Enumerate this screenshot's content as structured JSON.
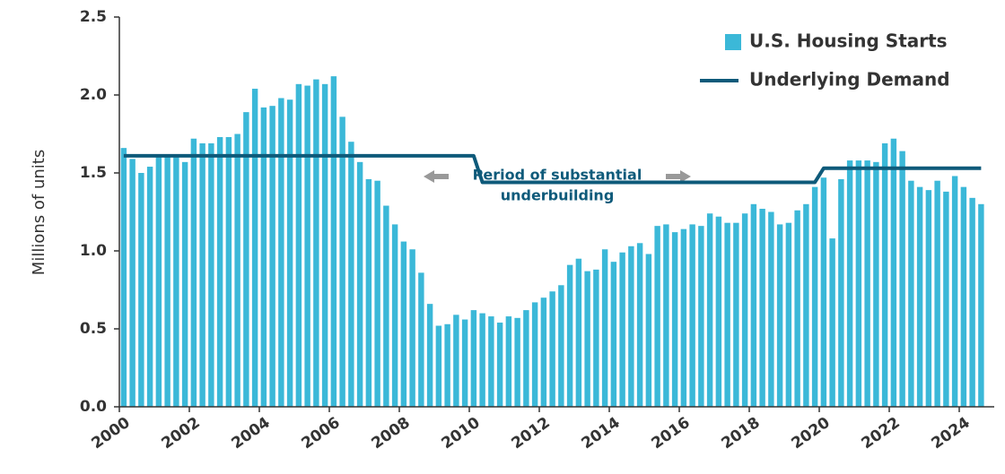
{
  "chart_data": {
    "type": "bar-line",
    "y_label": "Millions of units",
    "annotation": [
      "Period of substantial",
      "underbuilding"
    ],
    "categories": [
      "2000",
      null,
      null,
      null,
      null,
      null,
      null,
      null,
      "2002",
      null,
      null,
      null,
      null,
      null,
      null,
      null,
      "2004",
      null,
      null,
      null,
      null,
      null,
      null,
      null,
      "2006",
      null,
      null,
      null,
      null,
      null,
      null,
      null,
      "2008",
      null,
      null,
      null,
      null,
      null,
      null,
      null,
      "2010",
      null,
      null,
      null,
      null,
      null,
      null,
      null,
      "2012",
      null,
      null,
      null,
      null,
      null,
      null,
      null,
      "2014",
      null,
      null,
      null,
      null,
      null,
      null,
      null,
      "2016",
      null,
      null,
      null,
      null,
      null,
      null,
      null,
      "2018",
      null,
      null,
      null,
      null,
      null,
      null,
      null,
      "2020",
      null,
      null,
      null,
      null,
      null,
      null,
      null,
      "2022",
      null,
      null,
      null,
      null,
      null,
      null,
      null,
      "2024",
      null,
      null
    ],
    "series": [
      {
        "name": "U.S. Housing Starts",
        "type": "bar",
        "color": "#3bb8d8",
        "values": [
          1.66,
          1.59,
          1.5,
          1.54,
          1.6,
          1.61,
          1.6,
          1.57,
          1.72,
          1.69,
          1.69,
          1.73,
          1.73,
          1.75,
          1.89,
          2.04,
          1.92,
          1.93,
          1.98,
          1.97,
          2.07,
          2.06,
          2.1,
          2.07,
          2.12,
          1.86,
          1.7,
          1.57,
          1.46,
          1.45,
          1.29,
          1.17,
          1.06,
          1.01,
          0.86,
          0.66,
          0.52,
          0.53,
          0.59,
          0.56,
          0.62,
          0.6,
          0.58,
          0.54,
          0.58,
          0.57,
          0.62,
          0.67,
          0.7,
          0.74,
          0.78,
          0.91,
          0.95,
          0.87,
          0.88,
          1.01,
          0.93,
          0.99,
          1.03,
          1.05,
          0.98,
          1.16,
          1.17,
          1.12,
          1.14,
          1.17,
          1.16,
          1.24,
          1.22,
          1.18,
          1.18,
          1.24,
          1.3,
          1.27,
          1.25,
          1.17,
          1.18,
          1.26,
          1.3,
          1.41,
          1.47,
          1.08,
          1.46,
          1.58,
          1.58,
          1.58,
          1.57,
          1.69,
          1.72,
          1.64,
          1.45,
          1.41,
          1.39,
          1.45,
          1.38,
          1.48,
          1.41,
          1.34,
          1.3
        ]
      },
      {
        "name": "Underlying Demand",
        "type": "line",
        "color": "#0e5a7a",
        "values": [
          1.61,
          1.61,
          1.61,
          1.61,
          1.61,
          1.61,
          1.61,
          1.61,
          1.61,
          1.61,
          1.61,
          1.61,
          1.61,
          1.61,
          1.61,
          1.61,
          1.61,
          1.61,
          1.61,
          1.61,
          1.61,
          1.61,
          1.61,
          1.61,
          1.61,
          1.61,
          1.61,
          1.61,
          1.61,
          1.61,
          1.61,
          1.61,
          1.61,
          1.61,
          1.61,
          1.61,
          1.61,
          1.61,
          1.61,
          1.61,
          1.61,
          1.44,
          1.44,
          1.44,
          1.44,
          1.44,
          1.44,
          1.44,
          1.44,
          1.44,
          1.44,
          1.44,
          1.44,
          1.44,
          1.44,
          1.44,
          1.44,
          1.44,
          1.44,
          1.44,
          1.44,
          1.44,
          1.44,
          1.44,
          1.44,
          1.44,
          1.44,
          1.44,
          1.44,
          1.44,
          1.44,
          1.44,
          1.44,
          1.44,
          1.44,
          1.44,
          1.44,
          1.44,
          1.44,
          1.44,
          1.53,
          1.53,
          1.53,
          1.53,
          1.53,
          1.53,
          1.53,
          1.53,
          1.53,
          1.53,
          1.53,
          1.53,
          1.53,
          1.53,
          1.53,
          1.53,
          1.53,
          1.53,
          1.53
        ]
      }
    ],
    "ylim": [
      0,
      2.5
    ],
    "yticks": [
      {
        "value": 0,
        "label": "0.0"
      },
      {
        "value": 0.5,
        "label": "0.5"
      },
      {
        "value": 1,
        "label": "1.0"
      },
      {
        "value": 1.5,
        "label": "1.5"
      },
      {
        "value": 2,
        "label": "2.0"
      },
      {
        "value": 2.5,
        "label": "2.5"
      }
    ],
    "legend": "top-right"
  }
}
